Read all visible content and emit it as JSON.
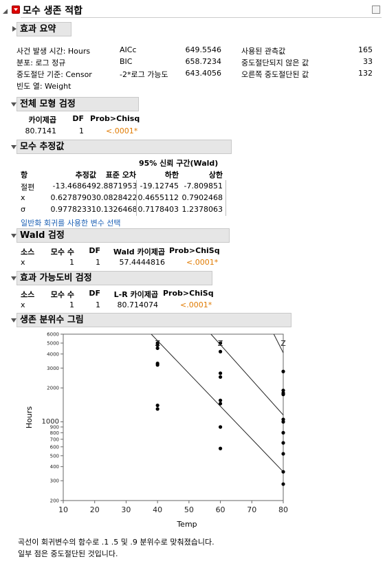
{
  "title": "모수 생존 적합",
  "summary": {
    "header": "효과 요약",
    "c1": [
      "사건 발생 시간: Hours",
      "분포: 로그 정규",
      "중도절단 기준: Censor",
      "빈도 열: Weight"
    ],
    "c2": [
      "AICc",
      "BIC",
      "-2*로그 가능도"
    ],
    "c3": [
      "649.5546",
      "658.7234",
      "643.4056"
    ],
    "c4": [
      "사용된 관측값",
      "중도절단되지 않은 값",
      "오른쪽 중도절단된 값"
    ],
    "c5": [
      "165",
      "33",
      "132"
    ]
  },
  "whole_model": {
    "header": "전체 모형 검정",
    "cols": [
      "카이제곱",
      "DF",
      "Prob>Chisq"
    ],
    "row": [
      "80.7141",
      "1",
      "<.0001*"
    ]
  },
  "estimates": {
    "header": "모수 추정값",
    "ci_title": "95% 신뢰 구간(Wald)",
    "cols": [
      "항",
      "추정값",
      "표준 오차",
      "하한",
      "상한"
    ],
    "rows": [
      [
        "절편",
        "-13.468649",
        "2.8871953",
        "-19.12745",
        "-7.809851"
      ],
      [
        "x",
        "0.62787903",
        "0.0828422",
        "0.4655112",
        "0.7902468"
      ],
      [
        "σ",
        "0.97782331",
        "0.1326468",
        "0.7178403",
        "1.2378063"
      ]
    ],
    "link": "일반화 회귀를 사용한 변수 선택"
  },
  "wald": {
    "header": "Wald 검정",
    "cols": [
      "소스",
      "모수 수",
      "DF",
      "Wald 카이제곱",
      "Prob>ChiSq"
    ],
    "row": [
      "x",
      "1",
      "1",
      "57.4444816",
      "<.0001*"
    ]
  },
  "lr": {
    "header": "효과 가능도비 검정",
    "cols": [
      "소스",
      "모수 수",
      "DF",
      "L-R 카이제곱",
      "Prob>ChiSq"
    ],
    "row": [
      "x",
      "1",
      "1",
      "80.714074",
      "<.0001*"
    ]
  },
  "plot": {
    "header": "생존 분위수 그림",
    "footnote1": "곡선이 회귀변수의 함수로 .1 .5 및 .9 분위수로 맞춰졌습니다.",
    "footnote2": "일부 점은 중도절단된 것입니다."
  },
  "chart_data": {
    "type": "scatter",
    "xlabel": "Temp",
    "ylabel": "Hours",
    "xlim": [
      10,
      80
    ],
    "ylim": [
      200,
      6000
    ],
    "y_scale": "log",
    "x_ticks": [
      10,
      20,
      30,
      40,
      50,
      60,
      70,
      80
    ],
    "y_ticks_labeled": [
      200,
      300,
      400,
      500,
      600,
      700,
      800,
      900,
      1000,
      2000,
      3000,
      4000,
      5000,
      6000
    ],
    "y_tick_labels": [
      "200",
      "300",
      "400",
      "500",
      "600",
      "700",
      "800",
      "900",
      "1000",
      "2000",
      "3000",
      "4000",
      "5000",
      "6000"
    ],
    "censor_marks": {
      "label": "Z",
      "x": [
        40,
        60,
        80
      ]
    },
    "points": [
      {
        "x": 40,
        "y": 5000
      },
      {
        "x": 40,
        "y": 4800
      },
      {
        "x": 40,
        "y": 4500
      },
      {
        "x": 40,
        "y": 3300
      },
      {
        "x": 40,
        "y": 3200
      },
      {
        "x": 40,
        "y": 1400
      },
      {
        "x": 40,
        "y": 1300
      },
      {
        "x": 60,
        "y": 5000
      },
      {
        "x": 60,
        "y": 4200
      },
      {
        "x": 60,
        "y": 2700
      },
      {
        "x": 60,
        "y": 2500
      },
      {
        "x": 60,
        "y": 1550
      },
      {
        "x": 60,
        "y": 1450
      },
      {
        "x": 60,
        "y": 900
      },
      {
        "x": 60,
        "y": 580
      },
      {
        "x": 80,
        "y": 2800
      },
      {
        "x": 80,
        "y": 1900
      },
      {
        "x": 80,
        "y": 1800
      },
      {
        "x": 80,
        "y": 1750
      },
      {
        "x": 80,
        "y": 1050
      },
      {
        "x": 80,
        "y": 1000
      },
      {
        "x": 80,
        "y": 800
      },
      {
        "x": 80,
        "y": 650
      },
      {
        "x": 80,
        "y": 520
      },
      {
        "x": 80,
        "y": 360
      },
      {
        "x": 80,
        "y": 280
      }
    ],
    "series": [
      {
        "x": [
          38,
          80
        ],
        "y": [
          6000,
          360
        ]
      },
      {
        "x": [
          57,
          80
        ],
        "y": [
          6000,
          1150
        ]
      },
      {
        "x": [
          77,
          80
        ],
        "y": [
          6000,
          4100
        ]
      }
    ]
  }
}
